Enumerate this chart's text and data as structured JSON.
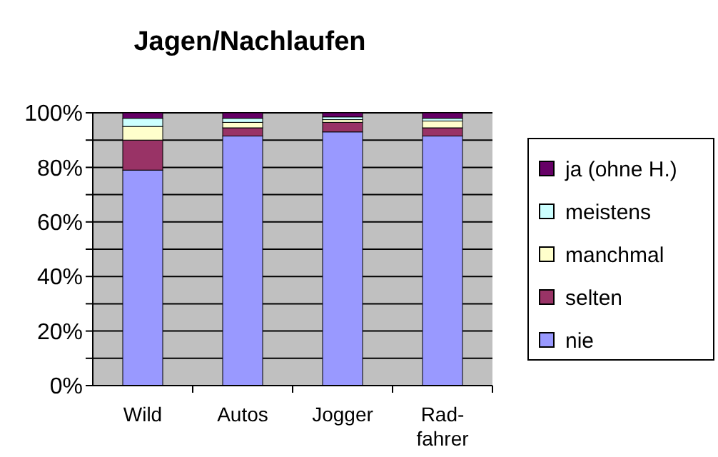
{
  "chart_data": {
    "type": "bar",
    "title": "Jagen/Nachlaufen",
    "stacked": true,
    "categories": [
      "Wild",
      "Autos",
      "Jogger",
      "Rad-\nfahrer"
    ],
    "series": [
      {
        "name": "nie",
        "color": "#9999ff",
        "values": [
          79,
          91.5,
          93,
          91.5
        ]
      },
      {
        "name": "selten",
        "color": "#993366",
        "values": [
          11,
          3,
          3.5,
          3
        ]
      },
      {
        "name": "manchmal",
        "color": "#ffffcc",
        "values": [
          5,
          2,
          1,
          2.5
        ]
      },
      {
        "name": "meistens",
        "color": "#ccffff",
        "values": [
          3,
          1.5,
          1,
          1
        ]
      },
      {
        "name": "ja (ohne H.)",
        "color": "#660066",
        "values": [
          2,
          2,
          1.5,
          2
        ]
      }
    ],
    "ylim": [
      0,
      100
    ],
    "yticks": [
      {
        "value": 0,
        "label": "0%"
      },
      {
        "value": 10,
        "label": null
      },
      {
        "value": 20,
        "label": "20%"
      },
      {
        "value": 30,
        "label": null
      },
      {
        "value": 40,
        "label": "40%"
      },
      {
        "value": 50,
        "label": null
      },
      {
        "value": 60,
        "label": "60%"
      },
      {
        "value": 70,
        "label": null
      },
      {
        "value": 80,
        "label": "80%"
      },
      {
        "value": 90,
        "label": null
      },
      {
        "value": 100,
        "label": "100%"
      }
    ],
    "grid": "y",
    "legend": "right"
  }
}
